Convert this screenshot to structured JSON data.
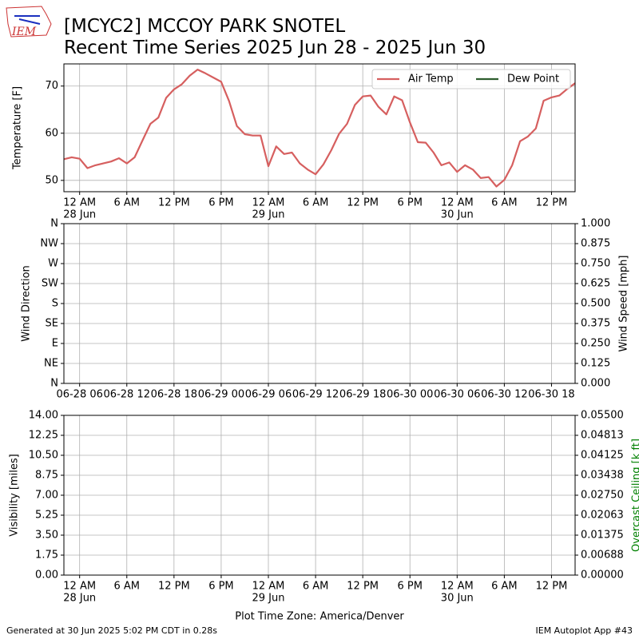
{
  "page": {
    "logo": "IEM",
    "title": "[MCYC2] MCCOY PARK SNOTEL",
    "subtitle": "Recent Time Series 2025 Jun 28 - 2025 Jun 30",
    "footer_left": "Generated at 30 Jun 2025 5:02 PM CDT in 0.28s",
    "footer_right": "IEM Autoplot App #43"
  },
  "chart_data": [
    {
      "type": "line",
      "ylabel": "Temperature [F]",
      "grid": true,
      "legend": "upper right",
      "x": [
        "2025-06-27 22:00",
        "2025-06-27 23:00",
        "2025-06-28 00:00",
        "2025-06-28 01:00",
        "2025-06-28 02:00",
        "2025-06-28 03:00",
        "2025-06-28 04:00",
        "2025-06-28 05:00",
        "2025-06-28 06:00",
        "2025-06-28 07:00",
        "2025-06-28 08:00",
        "2025-06-28 09:00",
        "2025-06-28 10:00",
        "2025-06-28 11:00",
        "2025-06-28 12:00",
        "2025-06-28 13:00",
        "2025-06-28 14:00",
        "2025-06-28 15:00",
        "2025-06-28 16:00",
        "2025-06-28 17:00",
        "2025-06-28 18:00",
        "2025-06-28 19:00",
        "2025-06-28 20:00",
        "2025-06-28 21:00",
        "2025-06-28 22:00",
        "2025-06-28 23:00",
        "2025-06-29 00:00",
        "2025-06-29 01:00",
        "2025-06-29 02:00",
        "2025-06-29 03:00",
        "2025-06-29 04:00",
        "2025-06-29 05:00",
        "2025-06-29 06:00",
        "2025-06-29 07:00",
        "2025-06-29 08:00",
        "2025-06-29 09:00",
        "2025-06-29 10:00",
        "2025-06-29 11:00",
        "2025-06-29 12:00",
        "2025-06-29 13:00",
        "2025-06-29 14:00",
        "2025-06-29 15:00",
        "2025-06-29 16:00",
        "2025-06-29 17:00",
        "2025-06-29 18:00",
        "2025-06-29 19:00",
        "2025-06-29 20:00",
        "2025-06-29 21:00",
        "2025-06-29 22:00",
        "2025-06-29 23:00",
        "2025-06-30 00:00",
        "2025-06-30 01:00",
        "2025-06-30 02:00",
        "2025-06-30 03:00",
        "2025-06-30 04:00",
        "2025-06-30 05:00",
        "2025-06-30 06:00",
        "2025-06-30 07:00",
        "2025-06-30 08:00",
        "2025-06-30 09:00",
        "2025-06-30 10:00",
        "2025-06-30 11:00",
        "2025-06-30 12:00",
        "2025-06-30 13:00",
        "2025-06-30 14:00",
        "2025-06-30 15:00"
      ],
      "series": [
        {
          "name": "Air Temp",
          "color": "#d65f5f",
          "values": [
            54.5,
            54.9,
            54.6,
            52.6,
            53.2,
            53.6,
            54.0,
            54.7,
            53.6,
            54.9,
            58.5,
            62.0,
            63.3,
            67.5,
            69.3,
            70.4,
            72.2,
            73.5,
            72.7,
            71.8,
            70.9,
            66.8,
            61.5,
            59.8,
            59.5,
            59.5,
            53.0,
            57.2,
            55.6,
            55.9,
            53.6,
            52.3,
            51.3,
            53.4,
            56.4,
            59.9,
            62.0,
            66.0,
            67.8,
            68.0,
            65.6,
            64.0,
            67.8,
            67.0,
            62.3,
            58.1,
            58.0,
            55.9,
            53.2,
            53.8,
            51.8,
            53.2,
            52.3,
            50.5,
            50.7,
            48.7,
            50.1,
            53.2,
            58.3,
            59.3,
            61.0,
            66.9,
            67.6,
            68.0,
            69.4,
            70.6
          ]
        },
        {
          "name": "Dew Point",
          "color": "#2e5e2e",
          "values": [
            null,
            null,
            null,
            null,
            null,
            null,
            null,
            null,
            null,
            null,
            null,
            null,
            null,
            null,
            null,
            null,
            null,
            null,
            null,
            null,
            null,
            null,
            null,
            null,
            null,
            null,
            null,
            null,
            null,
            null,
            null,
            null,
            null,
            null,
            null,
            null,
            null,
            null,
            null,
            null,
            null,
            null,
            null,
            null,
            null,
            null,
            null,
            null,
            null,
            null,
            null,
            null,
            null,
            null,
            null,
            null,
            null,
            null,
            null,
            null,
            null,
            null,
            null,
            null,
            null,
            null
          ]
        }
      ],
      "xlim": [
        "2025-06-27 22:00",
        "2025-06-30 15:00"
      ],
      "xticks": [
        {
          "value": "2025-06-28 00:00",
          "label": "12 AM",
          "date": "28 Jun"
        },
        {
          "value": "2025-06-28 06:00",
          "label": "6 AM"
        },
        {
          "value": "2025-06-28 12:00",
          "label": "12 PM"
        },
        {
          "value": "2025-06-28 18:00",
          "label": "6 PM"
        },
        {
          "value": "2025-06-29 00:00",
          "label": "12 AM",
          "date": "29 Jun"
        },
        {
          "value": "2025-06-29 06:00",
          "label": "6 AM"
        },
        {
          "value": "2025-06-29 12:00",
          "label": "12 PM"
        },
        {
          "value": "2025-06-29 18:00",
          "label": "6 PM"
        },
        {
          "value": "2025-06-30 00:00",
          "label": "12 AM",
          "date": "30 Jun"
        },
        {
          "value": "2025-06-30 06:00",
          "label": "6 AM"
        },
        {
          "value": "2025-06-30 12:00",
          "label": "12 PM"
        }
      ],
      "ylim": [
        47.6,
        74.7
      ],
      "yticks": [
        50,
        60,
        70
      ]
    },
    {
      "type": "line",
      "ylabel": "Wind Direction",
      "y2label": "Wind Speed [mph]",
      "grid": true,
      "series": [],
      "xlim": [
        "2025-06-28 04:00",
        "2025-06-30 21:00"
      ],
      "xticks": [
        {
          "value": "2025-06-28 06:00",
          "label": "06-28 06"
        },
        {
          "value": "2025-06-28 12:00",
          "label": "06-28 12"
        },
        {
          "value": "2025-06-28 18:00",
          "label": "06-28 18"
        },
        {
          "value": "2025-06-29 00:00",
          "label": "06-29 00"
        },
        {
          "value": "2025-06-29 06:00",
          "label": "06-29 06"
        },
        {
          "value": "2025-06-29 12:00",
          "label": "06-29 12"
        },
        {
          "value": "2025-06-29 18:00",
          "label": "06-29 18"
        },
        {
          "value": "2025-06-30 00:00",
          "label": "06-30 00"
        },
        {
          "value": "2025-06-30 06:00",
          "label": "06-30 06"
        },
        {
          "value": "2025-06-30 12:00",
          "label": "06-30 12"
        },
        {
          "value": "2025-06-30 18:00",
          "label": "06-30 18"
        }
      ],
      "ylim": [
        0,
        360
      ],
      "yticks": [
        {
          "value": 0,
          "label": "N"
        },
        {
          "value": 45,
          "label": "NE"
        },
        {
          "value": 90,
          "label": "E"
        },
        {
          "value": 135,
          "label": "SE"
        },
        {
          "value": 180,
          "label": "S"
        },
        {
          "value": 225,
          "label": "SW"
        },
        {
          "value": 270,
          "label": "W"
        },
        {
          "value": 315,
          "label": "NW"
        },
        {
          "value": 360,
          "label": "N"
        }
      ],
      "y2lim": [
        0,
        1
      ],
      "y2ticks": [
        {
          "value": 0,
          "label": "0.000"
        },
        {
          "value": 0.125,
          "label": "0.125"
        },
        {
          "value": 0.25,
          "label": "0.250"
        },
        {
          "value": 0.375,
          "label": "0.375"
        },
        {
          "value": 0.5,
          "label": "0.500"
        },
        {
          "value": 0.625,
          "label": "0.625"
        },
        {
          "value": 0.75,
          "label": "0.750"
        },
        {
          "value": 0.875,
          "label": "0.875"
        },
        {
          "value": 1,
          "label": "1.000"
        }
      ]
    },
    {
      "type": "line",
      "ylabel": "Visibility [miles]",
      "y2label": "Overcast Ceiling [k ft]",
      "y2label_color": "#008000",
      "xlabel": "Plot Time Zone: America/Denver",
      "grid": true,
      "series": [],
      "xlim": [
        "2025-06-27 22:00",
        "2025-06-30 15:00"
      ],
      "xticks": [
        {
          "value": "2025-06-28 00:00",
          "label": "12 AM",
          "date": "28 Jun"
        },
        {
          "value": "2025-06-28 06:00",
          "label": "6 AM"
        },
        {
          "value": "2025-06-28 12:00",
          "label": "12 PM"
        },
        {
          "value": "2025-06-28 18:00",
          "label": "6 PM"
        },
        {
          "value": "2025-06-29 00:00",
          "label": "12 AM",
          "date": "29 Jun"
        },
        {
          "value": "2025-06-29 06:00",
          "label": "6 AM"
        },
        {
          "value": "2025-06-29 12:00",
          "label": "12 PM"
        },
        {
          "value": "2025-06-29 18:00",
          "label": "6 PM"
        },
        {
          "value": "2025-06-30 00:00",
          "label": "12 AM",
          "date": "30 Jun"
        },
        {
          "value": "2025-06-30 06:00",
          "label": "6 AM"
        },
        {
          "value": "2025-06-30 12:00",
          "label": "12 PM"
        }
      ],
      "ylim": [
        0,
        14
      ],
      "yticks": [
        {
          "value": 0,
          "label": "0.00"
        },
        {
          "value": 1.75,
          "label": "1.75"
        },
        {
          "value": 3.5,
          "label": "3.50"
        },
        {
          "value": 5.25,
          "label": "5.25"
        },
        {
          "value": 7,
          "label": "7.00"
        },
        {
          "value": 8.75,
          "label": "8.75"
        },
        {
          "value": 10.5,
          "label": "10.50"
        },
        {
          "value": 12.25,
          "label": "12.25"
        },
        {
          "value": 14,
          "label": "14.00"
        }
      ],
      "y2lim": [
        0,
        0.055
      ],
      "y2ticks": [
        {
          "value": 0,
          "label": "0.00000"
        },
        {
          "value": 0.006875,
          "label": "0.00688"
        },
        {
          "value": 0.01375,
          "label": "0.01375"
        },
        {
          "value": 0.020625,
          "label": "0.02063"
        },
        {
          "value": 0.0275,
          "label": "0.02750"
        },
        {
          "value": 0.034375,
          "label": "0.03438"
        },
        {
          "value": 0.04125,
          "label": "0.04125"
        },
        {
          "value": 0.048125,
          "label": "0.04813"
        },
        {
          "value": 0.055,
          "label": "0.05500"
        }
      ]
    }
  ]
}
